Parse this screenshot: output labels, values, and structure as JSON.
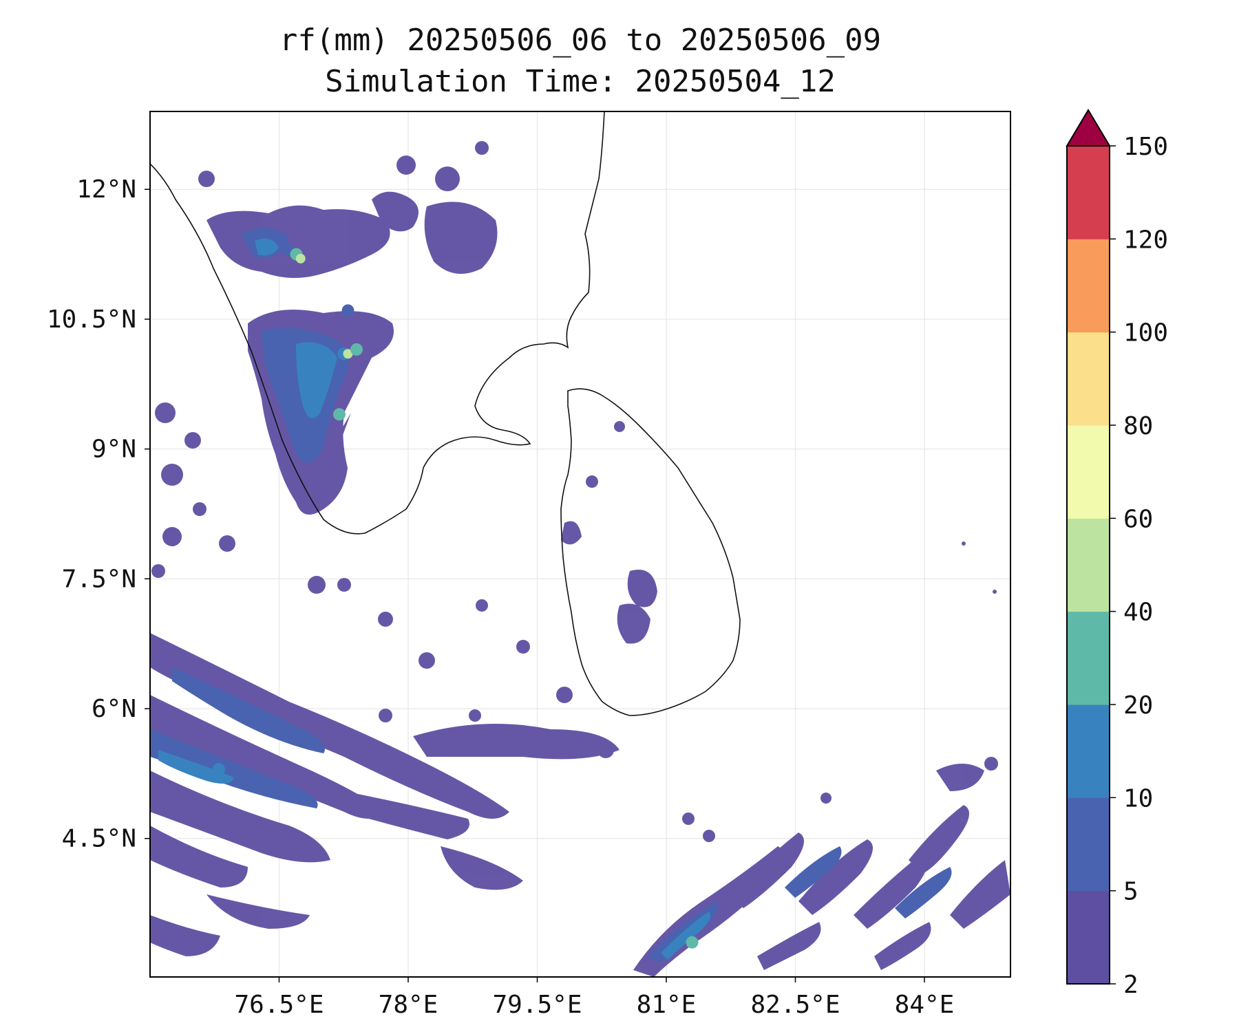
{
  "title": {
    "line1": "rf(mm) 20250506_06 to 20250506_09",
    "line2": "Simulation Time: 20250504_12"
  },
  "map": {
    "lon_range": [
      75.0,
      85.0
    ],
    "lat_range": [
      2.9,
      12.9
    ],
    "lon_ticks": [
      {
        "value": 76.5,
        "label": "76.5°E"
      },
      {
        "value": 78.0,
        "label": "78°E"
      },
      {
        "value": 79.5,
        "label": "79.5°E"
      },
      {
        "value": 81.0,
        "label": "81°E"
      },
      {
        "value": 82.5,
        "label": "82.5°E"
      },
      {
        "value": 84.0,
        "label": "84°E"
      }
    ],
    "lat_ticks": [
      {
        "value": 12.0,
        "label": "12°N"
      },
      {
        "value": 10.5,
        "label": "10.5°N"
      },
      {
        "value": 9.0,
        "label": "9°N"
      },
      {
        "value": 7.5,
        "label": "7.5°N"
      },
      {
        "value": 6.0,
        "label": "6°N"
      },
      {
        "value": 4.5,
        "label": "4.5°N"
      }
    ],
    "gridlines": true,
    "regions_shown": [
      "southern India",
      "Sri Lanka",
      "Bay of Bengal",
      "Laccadive Sea"
    ]
  },
  "colorbar": {
    "levels": [
      2,
      5,
      10,
      20,
      40,
      60,
      80,
      100,
      120,
      150
    ],
    "tick_labels": [
      "2",
      "5",
      "10",
      "20",
      "40",
      "60",
      "80",
      "100",
      "120",
      "150"
    ],
    "colors": [
      "#5e4fa2",
      "#4a63b0",
      "#3883bf",
      "#5fb9a8",
      "#bde3a0",
      "#f2faad",
      "#fbdf8a",
      "#f89b5b",
      "#d53e4f"
    ],
    "extend_color": "#9e0142",
    "extend": "max"
  },
  "rain_areas": [
    {
      "lon": 76.6,
      "lat": 11.3,
      "value": 6
    },
    {
      "lon": 76.7,
      "lat": 11.25,
      "value": 25
    },
    {
      "lon": 76.75,
      "lat": 11.2,
      "value": 45
    },
    {
      "lon": 77.3,
      "lat": 10.6,
      "value": 8
    },
    {
      "lon": 77.25,
      "lat": 10.1,
      "value": 12
    },
    {
      "lon": 77.3,
      "lat": 10.1,
      "value": 45
    },
    {
      "lon": 77.4,
      "lat": 10.15,
      "value": 30
    },
    {
      "lon": 77.2,
      "lat": 9.4,
      "value": 25
    },
    {
      "lon": 75.8,
      "lat": 5.3,
      "value": 12
    },
    {
      "lon": 81.3,
      "lat": 3.3,
      "value": 25
    }
  ]
}
